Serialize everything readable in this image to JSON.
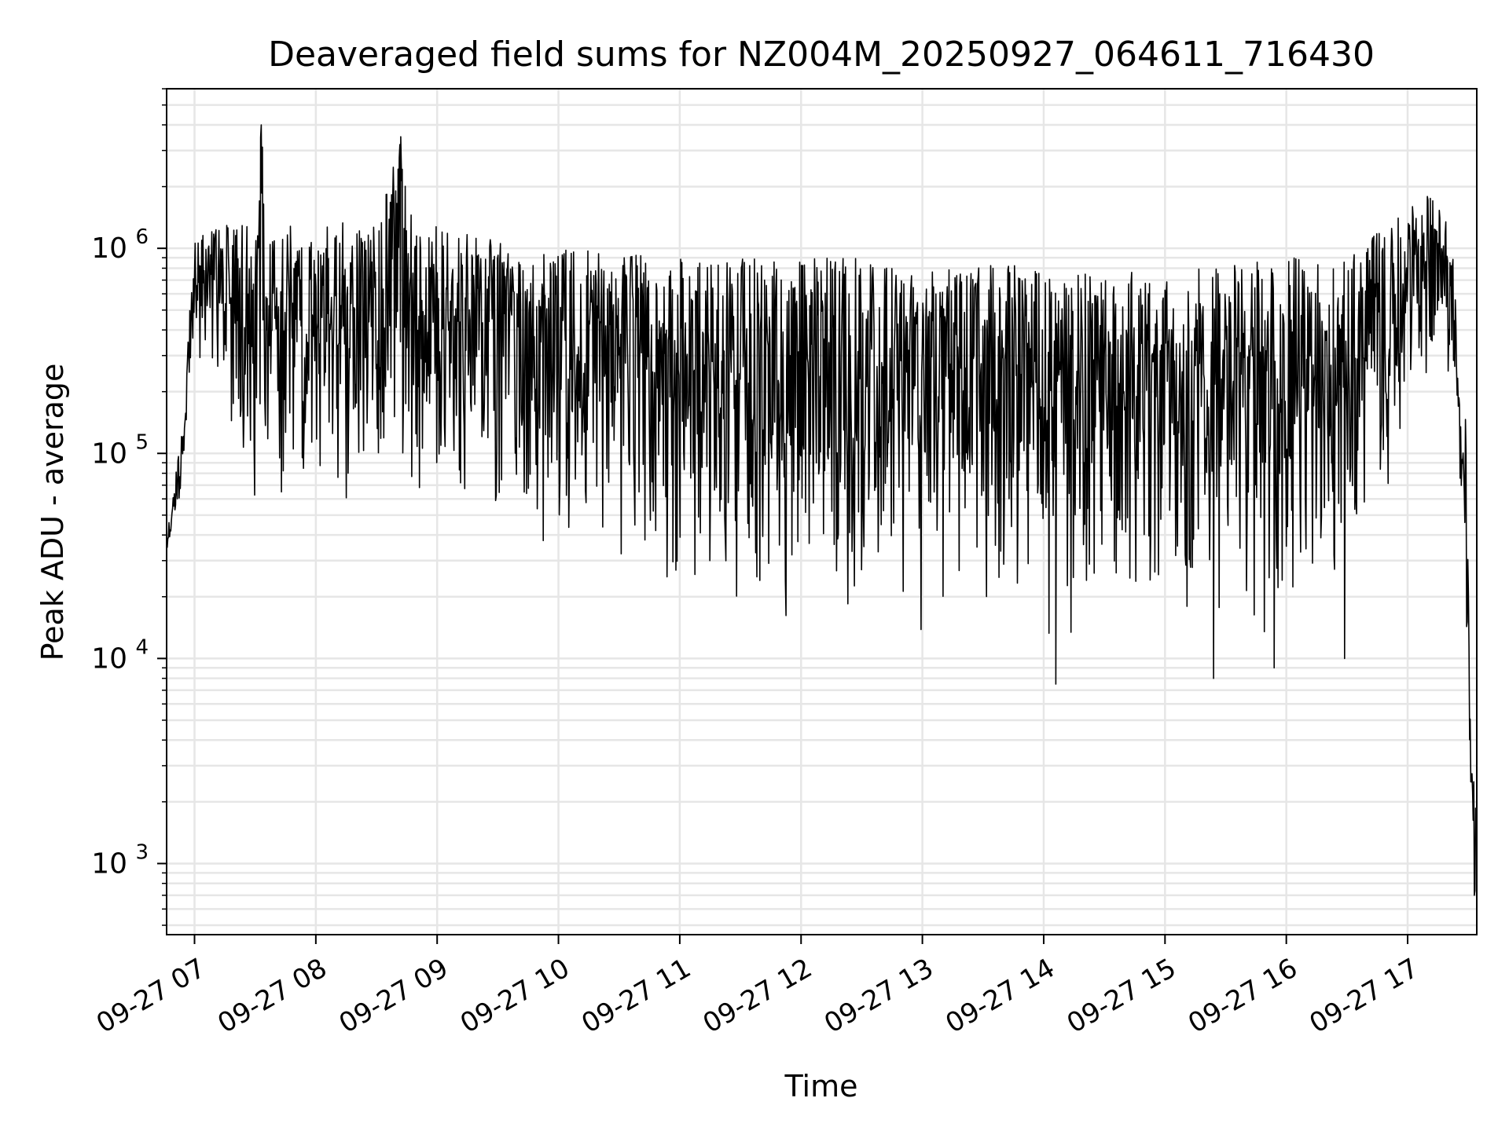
{
  "chart_data": {
    "type": "line",
    "title": "Deaveraged field sums for NZ004M_20250927_064611_716430",
    "xlabel": "Time",
    "ylabel": "Peak ADU - average",
    "yscale": "log",
    "ylim": [
      450,
      6000000
    ],
    "xlim_hours": [
      6.77,
      17.57
    ],
    "grid": true,
    "line_color": "#000000",
    "grid_color": "#e6e6e6",
    "x_ticks": [
      {
        "hour": 7,
        "label": "09-27 07"
      },
      {
        "hour": 8,
        "label": "09-27 08"
      },
      {
        "hour": 9,
        "label": "09-27 09"
      },
      {
        "hour": 10,
        "label": "09-27 10"
      },
      {
        "hour": 11,
        "label": "09-27 11"
      },
      {
        "hour": 12,
        "label": "09-27 12"
      },
      {
        "hour": 13,
        "label": "09-27 13"
      },
      {
        "hour": 14,
        "label": "09-27 14"
      },
      {
        "hour": 15,
        "label": "09-27 15"
      },
      {
        "hour": 16,
        "label": "09-27 16"
      },
      {
        "hour": 17,
        "label": "09-27 17"
      }
    ],
    "y_ticks": [
      {
        "value": 1000,
        "base": "10",
        "exp": "3"
      },
      {
        "value": 10000,
        "base": "10",
        "exp": "4"
      },
      {
        "value": 100000,
        "base": "10",
        "exp": "5"
      },
      {
        "value": 1000000,
        "base": "10",
        "exp": "6"
      }
    ],
    "envelope": {
      "description": "Approximate upper/lower envelope of the noisy series (hour, value)",
      "upper": [
        [
          6.77,
          40000
        ],
        [
          6.9,
          130000
        ],
        [
          7.0,
          1200000
        ],
        [
          7.5,
          1400000
        ],
        [
          7.55,
          4000000
        ],
        [
          7.6,
          1400000
        ],
        [
          8.0,
          1300000
        ],
        [
          8.5,
          1400000
        ],
        [
          8.7,
          3500000
        ],
        [
          8.8,
          1300000
        ],
        [
          9.0,
          1300000
        ],
        [
          9.5,
          1100000
        ],
        [
          10.0,
          1000000
        ],
        [
          10.5,
          1000000
        ],
        [
          11.0,
          900000
        ],
        [
          11.5,
          900000
        ],
        [
          12.0,
          900000
        ],
        [
          12.5,
          900000
        ],
        [
          13.0,
          850000
        ],
        [
          13.5,
          850000
        ],
        [
          14.0,
          850000
        ],
        [
          14.5,
          800000
        ],
        [
          15.0,
          800000
        ],
        [
          15.5,
          850000
        ],
        [
          16.0,
          900000
        ],
        [
          16.5,
          900000
        ],
        [
          16.9,
          1500000
        ],
        [
          17.1,
          1900000
        ],
        [
          17.3,
          1600000
        ],
        [
          17.38,
          1000000
        ],
        [
          17.4,
          500000
        ],
        [
          17.42,
          200000
        ],
        [
          17.48,
          150000
        ],
        [
          17.52,
          3500
        ],
        [
          17.57,
          2000
        ]
      ],
      "lower": [
        [
          6.77,
          30000
        ],
        [
          6.9,
          70000
        ],
        [
          7.0,
          300000
        ],
        [
          7.5,
          60000
        ],
        [
          8.0,
          50000
        ],
        [
          8.5,
          50000
        ],
        [
          9.0,
          50000
        ],
        [
          9.5,
          40000
        ],
        [
          10.0,
          35000
        ],
        [
          10.5,
          25000
        ],
        [
          11.0,
          18000
        ],
        [
          11.5,
          15000
        ],
        [
          12.0,
          15000
        ],
        [
          12.5,
          14000
        ],
        [
          13.0,
          13000
        ],
        [
          13.5,
          16000
        ],
        [
          14.0,
          14000
        ],
        [
          14.1,
          7500
        ],
        [
          14.5,
          16000
        ],
        [
          15.0,
          15000
        ],
        [
          15.4,
          8000
        ],
        [
          15.5,
          16000
        ],
        [
          15.9,
          9000
        ],
        [
          16.0,
          18000
        ],
        [
          16.5,
          25000
        ],
        [
          16.9,
          50000
        ],
        [
          17.0,
          150000
        ],
        [
          17.3,
          300000
        ],
        [
          17.4,
          120000
        ],
        [
          17.45,
          50000
        ],
        [
          17.5,
          5000
        ],
        [
          17.55,
          700
        ]
      ]
    },
    "spikes": [
      {
        "hour": 7.55,
        "value": 4000000
      },
      {
        "hour": 8.7,
        "value": 3500000
      },
      {
        "hour": 14.1,
        "value": 7500
      },
      {
        "hour": 15.4,
        "value": 8000
      },
      {
        "hour": 15.9,
        "value": 9000
      },
      {
        "hour": 16.48,
        "value": 10000
      },
      {
        "hour": 17.55,
        "value": 700
      }
    ],
    "seed": 716430
  }
}
